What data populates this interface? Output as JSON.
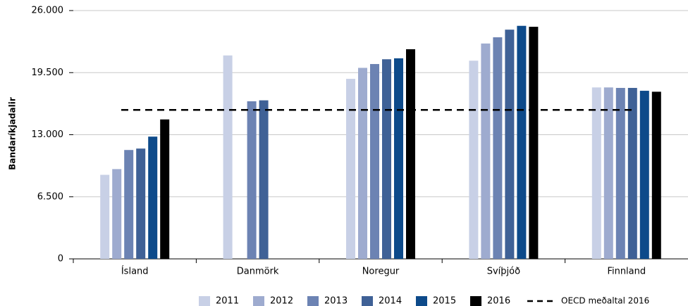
{
  "chart_data": {
    "type": "bar",
    "y_label": "Bandaríkjadalir",
    "categories": [
      "Ísland",
      "Danmörk",
      "Noregur",
      "Svíþjóð",
      "Finnland"
    ],
    "series": [
      {
        "name": "2011",
        "color": "#c8d0e6",
        "values": [
          8800,
          21300,
          18850,
          20750,
          17950
        ]
      },
      {
        "name": "2012",
        "color": "#9eabcf",
        "values": [
          9400,
          null,
          20000,
          22550,
          17950
        ]
      },
      {
        "name": "2013",
        "color": "#6c83b3",
        "values": [
          11400,
          16500,
          20400,
          23200,
          17900
        ]
      },
      {
        "name": "2014",
        "color": "#3f6196",
        "values": [
          11550,
          16600,
          20900,
          24000,
          17900
        ]
      },
      {
        "name": "2015",
        "color": "#0d4a8a",
        "values": [
          12800,
          null,
          21000,
          24400,
          17600
        ]
      },
      {
        "name": "2016",
        "color": "#000000",
        "values": [
          14600,
          null,
          21950,
          24300,
          17500
        ]
      }
    ],
    "reference_line": {
      "name": "OECD meðaltal 2016",
      "value": 15600,
      "color": "#000000"
    },
    "ylim": [
      0,
      26000
    ],
    "yticks": [
      0,
      {
        "value": 6500,
        "label": "6.500"
      },
      {
        "value": 13000,
        "label": "13.000"
      },
      {
        "value": 19500,
        "label": "19.500"
      },
      {
        "value": 26000,
        "label": "26.000"
      }
    ],
    "grid": true
  }
}
